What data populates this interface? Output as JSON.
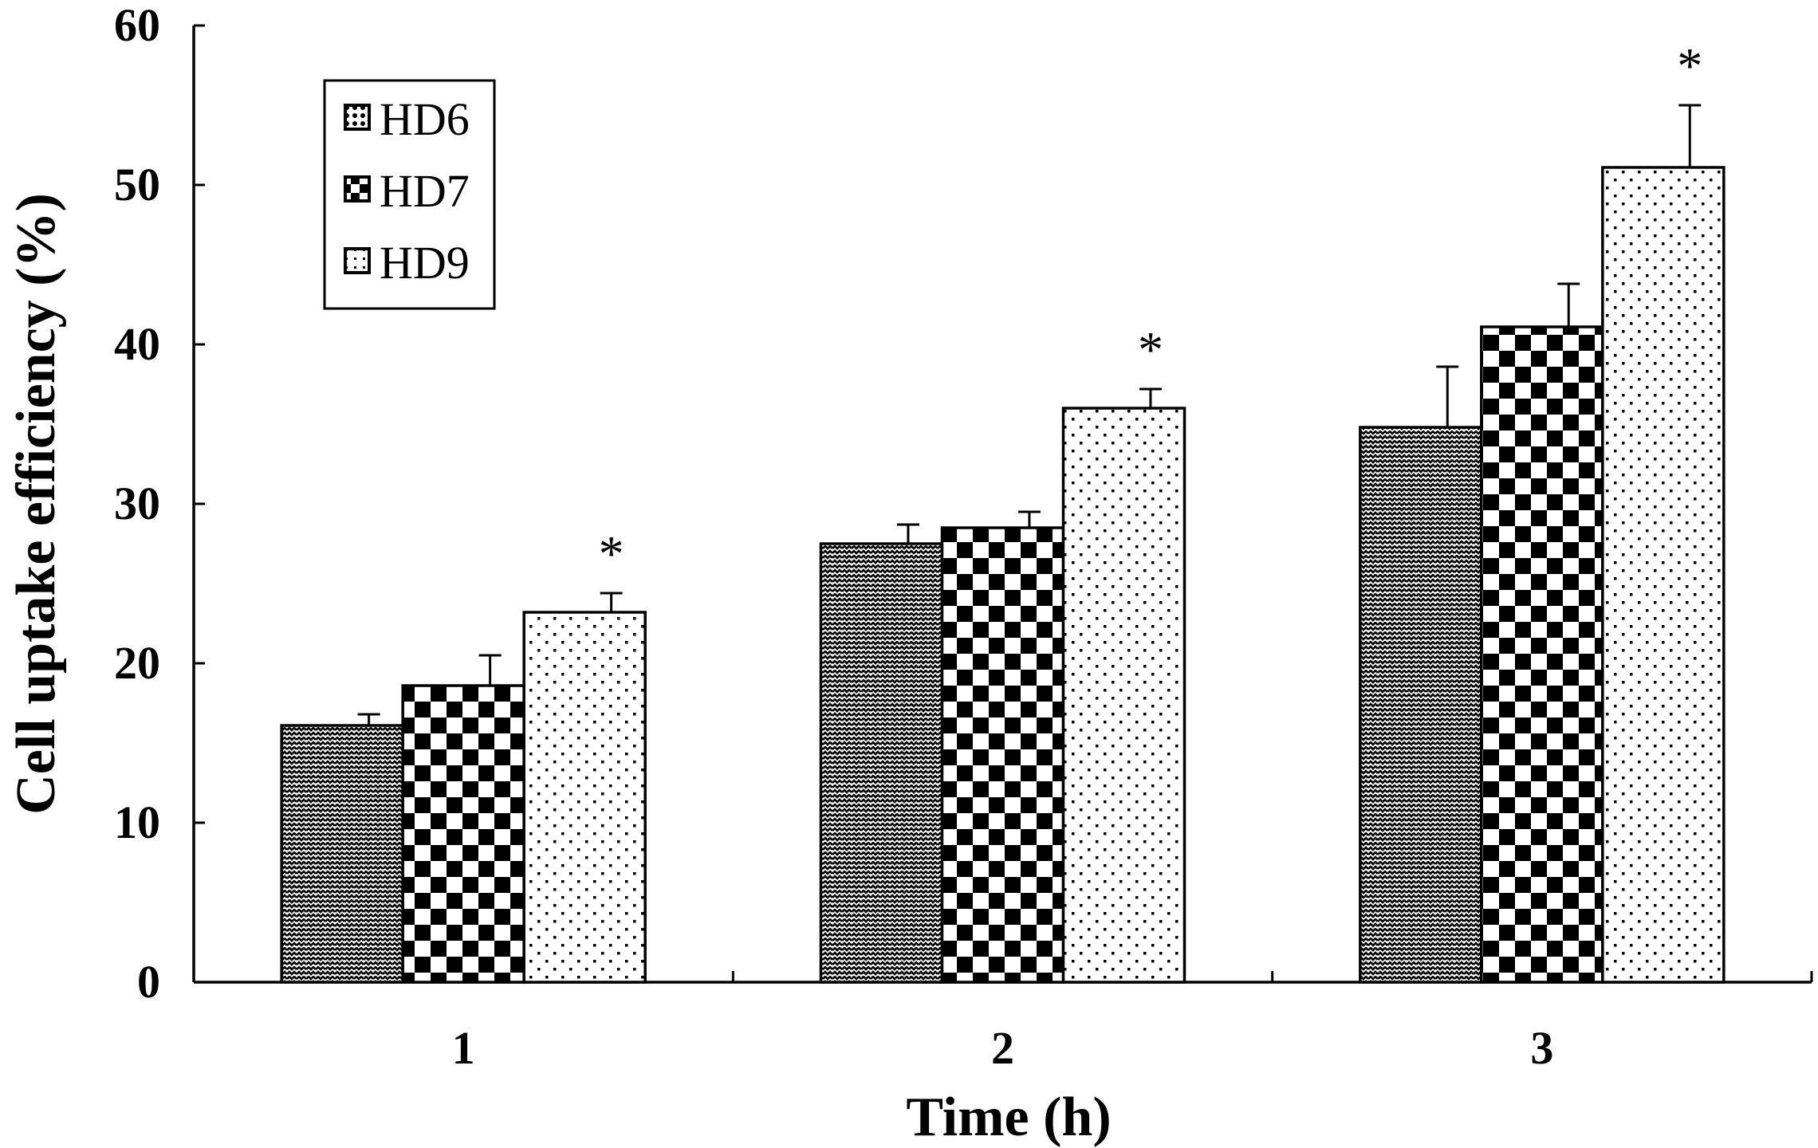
{
  "chart_data": {
    "type": "bar",
    "categories": [
      "1",
      "2",
      "3"
    ],
    "series": [
      {
        "name": "HD6",
        "values": [
          16.1,
          27.5,
          34.8
        ],
        "errors": [
          0.7,
          1.2,
          3.8
        ],
        "pattern": "zigzag"
      },
      {
        "name": "HD7",
        "values": [
          18.6,
          28.5,
          41.1
        ],
        "errors": [
          1.9,
          1.0,
          2.7
        ],
        "pattern": "checker"
      },
      {
        "name": "HD9",
        "values": [
          23.2,
          36.0,
          51.1
        ],
        "errors": [
          1.2,
          1.2,
          3.9
        ],
        "pattern": "dots"
      }
    ],
    "significance": [
      {
        "category": "1",
        "series": "HD9",
        "mark": "*"
      },
      {
        "category": "2",
        "series": "HD9",
        "mark": "*"
      },
      {
        "category": "3",
        "series": "HD9",
        "mark": "*"
      }
    ],
    "xlabel": "Time (h)",
    "ylabel": "Cell uptake efficiency (%)",
    "ylim": [
      0,
      60
    ],
    "yticks": [
      0,
      10,
      20,
      30,
      40,
      50,
      60
    ],
    "grid": false,
    "legend_position": "top-left"
  }
}
